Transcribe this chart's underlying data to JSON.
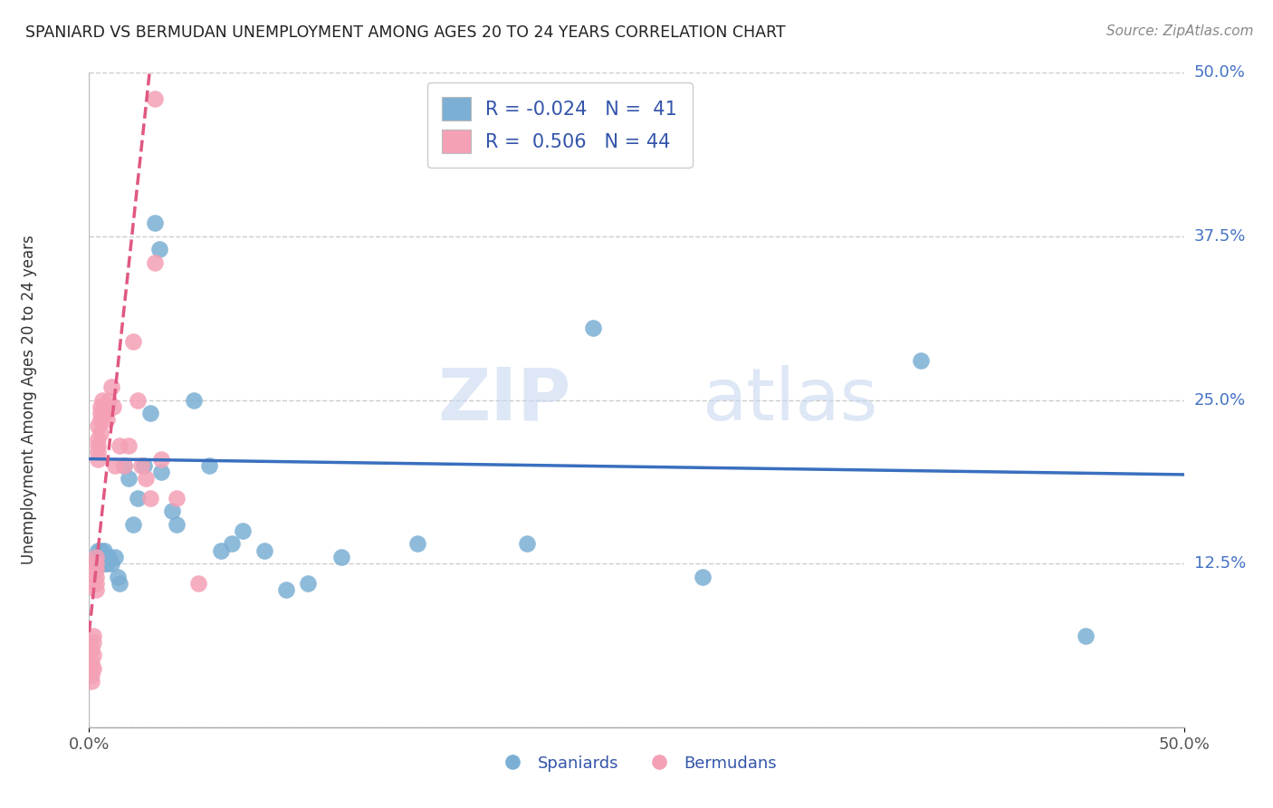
{
  "title": "SPANIARD VS BERMUDAN UNEMPLOYMENT AMONG AGES 20 TO 24 YEARS CORRELATION CHART",
  "source": "Source: ZipAtlas.com",
  "ylabel": "Unemployment Among Ages 20 to 24 years",
  "xlim": [
    0.0,
    0.5
  ],
  "ylim": [
    0.0,
    0.5
  ],
  "ytick_vals": [
    0.0,
    0.125,
    0.25,
    0.375,
    0.5
  ],
  "ytick_labels_right": [
    "",
    "12.5%",
    "25.0%",
    "37.5%",
    "50.0%"
  ],
  "legend_blue_R": "-0.024",
  "legend_blue_N": "41",
  "legend_pink_R": "0.506",
  "legend_pink_N": "44",
  "blue_color": "#7bafd4",
  "pink_color": "#f4a0b5",
  "trend_blue_color": "#3a6fbf",
  "trend_pink_color": "#e05880",
  "watermark_zip": "ZIP",
  "watermark_atlas": "atlas",
  "spaniards_x": [
    0.004,
    0.004,
    0.005,
    0.005,
    0.006,
    0.006,
    0.007,
    0.007,
    0.008,
    0.008,
    0.009,
    0.01,
    0.012,
    0.013,
    0.014,
    0.016,
    0.018,
    0.02,
    0.022,
    0.025,
    0.028,
    0.03,
    0.032,
    0.033,
    0.038,
    0.04,
    0.048,
    0.055,
    0.06,
    0.065,
    0.07,
    0.08,
    0.09,
    0.1,
    0.115,
    0.15,
    0.2,
    0.23,
    0.28,
    0.38,
    0.455
  ],
  "spaniards_y": [
    0.135,
    0.13,
    0.125,
    0.135,
    0.13,
    0.125,
    0.125,
    0.135,
    0.125,
    0.13,
    0.13,
    0.125,
    0.13,
    0.115,
    0.11,
    0.2,
    0.19,
    0.155,
    0.175,
    0.2,
    0.24,
    0.385,
    0.365,
    0.195,
    0.165,
    0.155,
    0.25,
    0.2,
    0.135,
    0.14,
    0.15,
    0.135,
    0.105,
    0.11,
    0.13,
    0.14,
    0.14,
    0.305,
    0.115,
    0.28,
    0.07
  ],
  "bermudans_x": [
    0.001,
    0.001,
    0.001,
    0.001,
    0.001,
    0.002,
    0.002,
    0.002,
    0.002,
    0.003,
    0.003,
    0.003,
    0.003,
    0.003,
    0.003,
    0.004,
    0.004,
    0.004,
    0.004,
    0.004,
    0.005,
    0.005,
    0.005,
    0.005,
    0.006,
    0.007,
    0.008,
    0.009,
    0.01,
    0.011,
    0.012,
    0.014,
    0.016,
    0.018,
    0.02,
    0.022,
    0.024,
    0.026,
    0.028,
    0.03,
    0.03,
    0.033,
    0.04,
    0.05
  ],
  "bermudans_y": [
    0.06,
    0.05,
    0.045,
    0.04,
    0.035,
    0.07,
    0.065,
    0.055,
    0.045,
    0.13,
    0.125,
    0.12,
    0.115,
    0.11,
    0.105,
    0.23,
    0.22,
    0.215,
    0.21,
    0.205,
    0.245,
    0.24,
    0.235,
    0.225,
    0.25,
    0.24,
    0.235,
    0.25,
    0.26,
    0.245,
    0.2,
    0.215,
    0.2,
    0.215,
    0.295,
    0.25,
    0.2,
    0.19,
    0.175,
    0.48,
    0.355,
    0.205,
    0.175,
    0.11
  ]
}
